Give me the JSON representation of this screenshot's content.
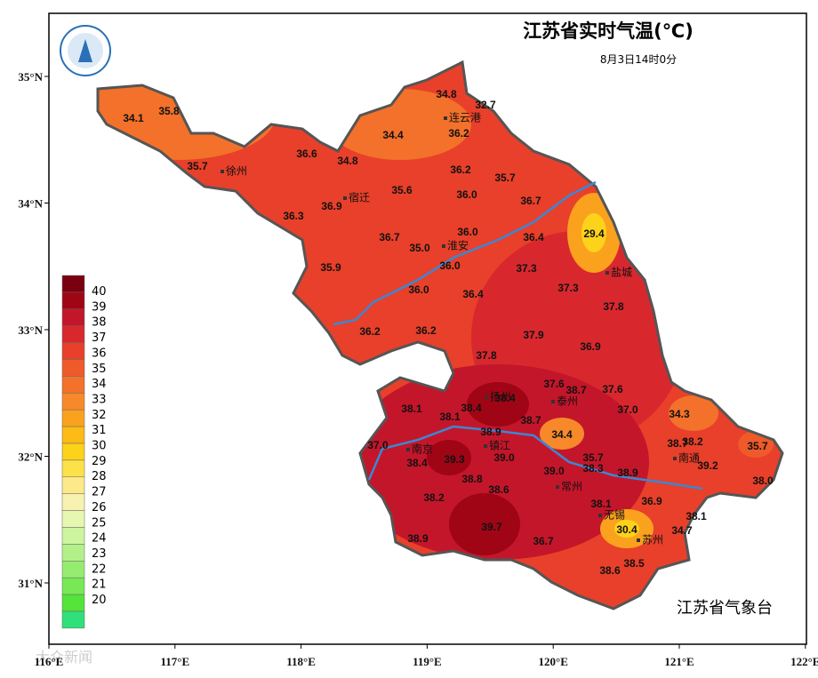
{
  "header": {
    "title": "江苏省实时气温(℃)",
    "subtitle": "8月3日14时0分"
  },
  "footer": "江苏省气象台",
  "watermark": "大众新闻",
  "axes": {
    "x": [
      {
        "value": 116,
        "label": "116°E"
      },
      {
        "value": 117,
        "label": "117°E"
      },
      {
        "value": 118,
        "label": "118°E"
      },
      {
        "value": 119,
        "label": "119°E"
      },
      {
        "value": 120,
        "label": "120°E"
      },
      {
        "value": 121,
        "label": "121°E"
      },
      {
        "value": 122,
        "label": "122°E"
      }
    ],
    "y": [
      {
        "value": 31,
        "label": "31°N"
      },
      {
        "value": 32,
        "label": "32°N"
      },
      {
        "value": 33,
        "label": "33°N"
      },
      {
        "value": 34,
        "label": "34°N"
      },
      {
        "value": 35,
        "label": "35°N"
      }
    ]
  },
  "legend": {
    "levels": [
      40,
      39,
      38,
      37,
      36,
      35,
      34,
      33,
      32,
      31,
      30,
      29,
      28,
      27,
      26,
      25,
      24,
      23,
      22,
      21,
      20
    ],
    "colors": [
      "#7a0010",
      "#a00515",
      "#c4162a",
      "#d8282e",
      "#e8402a",
      "#ef5a2a",
      "#f3712a",
      "#f7892a",
      "#faa21e",
      "#fcbb16",
      "#fdd21a",
      "#fde14a",
      "#fde98a",
      "#f8f2b0",
      "#e6f7b0",
      "#cdf5a0",
      "#b3f08a",
      "#96ec70",
      "#78e855",
      "#55e43a",
      "#30e07a"
    ]
  },
  "cities": [
    "连云港",
    "徐州",
    "宿迁",
    "淮安",
    "盐城",
    "扬州",
    "泰州",
    "南京",
    "镇江",
    "南通",
    "常州",
    "无锡",
    "苏州"
  ],
  "temperatures": [
    "34.8",
    "32.7",
    "34.1",
    "35.8",
    "34.4",
    "36.2",
    "36.6",
    "34.8",
    "35.7",
    "36.2",
    "35.7",
    "35.6",
    "36.0",
    "36.7",
    "36.9",
    "36.3",
    "36.0",
    "29.4",
    "36.7",
    "35.0",
    "36.4",
    "36.0",
    "37.3",
    "35.9",
    "36.0",
    "36.4",
    "37.3",
    "37.8",
    "36.2",
    "36.2",
    "37.9",
    "36.9",
    "37.8",
    "37.6",
    "38.7",
    "37.6",
    "38.4",
    "38.4",
    "38.1",
    "38.1",
    "37.0",
    "34.3",
    "38.7",
    "38.9",
    "34.4",
    "37.0",
    "38.7",
    "38.2",
    "35.7",
    "39.3",
    "39.0",
    "35.7",
    "38.4",
    "39.2",
    "38.3",
    "38.9",
    "39.0",
    "38.8",
    "38.0",
    "38.6",
    "38.2",
    "38.1",
    "36.9",
    "38.1",
    "39.7",
    "30.4",
    "34.7",
    "36.7",
    "38.9",
    "38.5",
    "38.6"
  ]
}
